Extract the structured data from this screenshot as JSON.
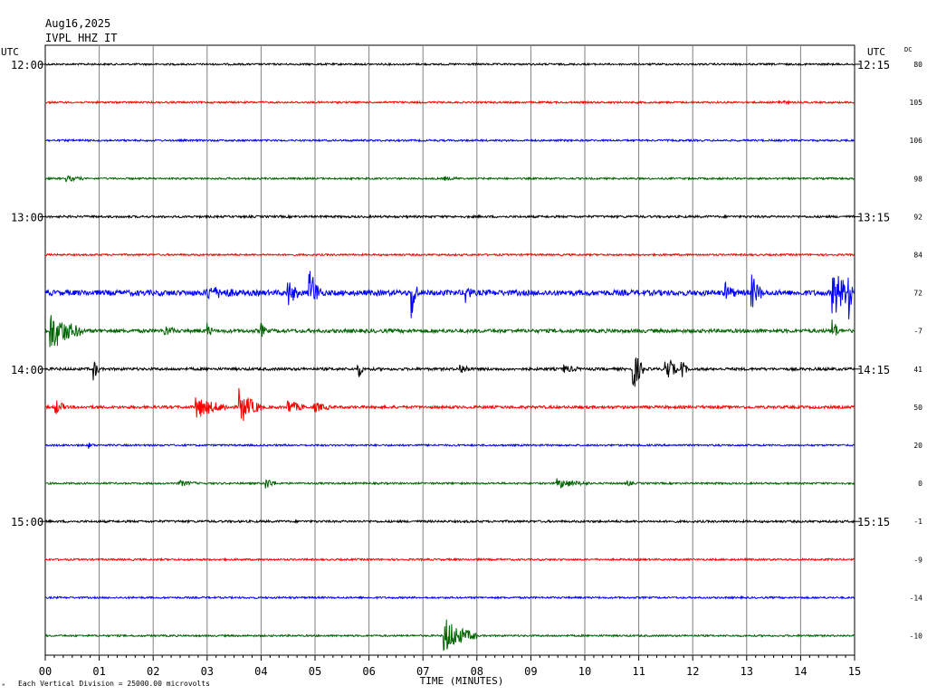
{
  "header": {
    "date": "Aug16,2025",
    "station": "IVPL HHZ IT",
    "utc_left": "UTC",
    "utc_right": "UTC",
    "dc_label": "DC"
  },
  "footer": {
    "xlabel": "TIME (MINUTES)",
    "scale_note": "Each Vertical Division = 25000.00 microvolts",
    "corner_mark": "ᴹ"
  },
  "colors": {
    "trace_cycle": [
      "#000000",
      "#ff0000",
      "#0000ff",
      "#006400"
    ],
    "grid": "#808080",
    "frame": "#000000"
  },
  "chart_data": {
    "type": "line",
    "title": "",
    "xlabel": "TIME (MINUTES)",
    "ylabel": "",
    "x_ticks": [
      "00",
      "01",
      "02",
      "03",
      "04",
      "05",
      "06",
      "07",
      "08",
      "09",
      "10",
      "11",
      "12",
      "13",
      "14",
      "15"
    ],
    "xlim": [
      0,
      15
    ],
    "grid": true,
    "left_hour_labels": [
      {
        "row": 0,
        "label": "12:00"
      },
      {
        "row": 4,
        "label": "13:00"
      },
      {
        "row": 8,
        "label": "14:00"
      },
      {
        "row": 12,
        "label": "15:00"
      }
    ],
    "right_hour_labels": [
      {
        "row": 0,
        "label": "12:15"
      },
      {
        "row": 4,
        "label": "13:15"
      },
      {
        "row": 8,
        "label": "14:15"
      },
      {
        "row": 12,
        "label": "15:15"
      }
    ],
    "dc_values": [
      "80",
      "105",
      "106",
      "98",
      "92",
      "84",
      "72",
      "-7",
      "41",
      "50",
      "20",
      "0",
      "-1",
      "-9",
      "-14",
      "-10"
    ],
    "traces": [
      {
        "row": 0,
        "color": "black",
        "noise": 1,
        "events": []
      },
      {
        "row": 1,
        "color": "red",
        "noise": 1,
        "events": [
          {
            "t": 13.6,
            "amp": 2,
            "dur": 0.2
          }
        ]
      },
      {
        "row": 2,
        "color": "blue",
        "noise": 1,
        "events": []
      },
      {
        "row": 3,
        "color": "green",
        "noise": 1,
        "events": [
          {
            "t": 0.4,
            "amp": 3,
            "dur": 0.3
          },
          {
            "t": 7.4,
            "amp": 1.5,
            "dur": 0.3
          }
        ]
      },
      {
        "row": 4,
        "color": "black",
        "noise": 1.2,
        "events": []
      },
      {
        "row": 5,
        "color": "red",
        "noise": 1,
        "events": []
      },
      {
        "row": 6,
        "color": "blue",
        "noise": 3,
        "events": [
          {
            "t": 3.0,
            "amp": 6,
            "dur": 0.6
          },
          {
            "t": 4.9,
            "amp": 28,
            "dur": 0.2
          },
          {
            "t": 4.5,
            "amp": 14,
            "dur": 0.2
          },
          {
            "t": 6.8,
            "amp": 30,
            "dur": 0.1
          },
          {
            "t": 7.8,
            "amp": 12,
            "dur": 0.1
          },
          {
            "t": 12.6,
            "amp": 10,
            "dur": 0.2
          },
          {
            "t": 13.1,
            "amp": 18,
            "dur": 0.2
          },
          {
            "t": 14.6,
            "amp": 28,
            "dur": 0.4
          },
          {
            "t": 14.9,
            "amp": 30,
            "dur": 0.1
          }
        ]
      },
      {
        "row": 7,
        "color": "green",
        "noise": 2,
        "events": [
          {
            "t": 0.1,
            "amp": 22,
            "dur": 0.6
          },
          {
            "t": 2.2,
            "amp": 6,
            "dur": 0.2
          },
          {
            "t": 3.0,
            "amp": 8,
            "dur": 0.1
          },
          {
            "t": 4.0,
            "amp": 8,
            "dur": 0.1
          },
          {
            "t": 14.6,
            "amp": 14,
            "dur": 0.1
          }
        ]
      },
      {
        "row": 8,
        "color": "black",
        "noise": 1.5,
        "events": [
          {
            "t": 0.9,
            "amp": 12,
            "dur": 0.1
          },
          {
            "t": 5.8,
            "amp": 10,
            "dur": 0.1
          },
          {
            "t": 7.7,
            "amp": 5,
            "dur": 0.2
          },
          {
            "t": 9.6,
            "amp": 4,
            "dur": 0.3
          },
          {
            "t": 10.9,
            "amp": 24,
            "dur": 0.2
          },
          {
            "t": 11.5,
            "amp": 18,
            "dur": 0.2
          },
          {
            "t": 11.8,
            "amp": 10,
            "dur": 0.1
          }
        ]
      },
      {
        "row": 9,
        "color": "red",
        "noise": 1.5,
        "events": [
          {
            "t": 0.2,
            "amp": 8,
            "dur": 0.2
          },
          {
            "t": 2.8,
            "amp": 12,
            "dur": 0.6
          },
          {
            "t": 3.6,
            "amp": 20,
            "dur": 0.4
          },
          {
            "t": 4.5,
            "amp": 8,
            "dur": 0.3
          },
          {
            "t": 5.0,
            "amp": 5,
            "dur": 0.3
          }
        ]
      },
      {
        "row": 10,
        "color": "blue",
        "noise": 1,
        "events": [
          {
            "t": 0.8,
            "amp": 3,
            "dur": 0.1
          }
        ]
      },
      {
        "row": 11,
        "color": "green",
        "noise": 1,
        "events": [
          {
            "t": 2.5,
            "amp": 3,
            "dur": 0.3
          },
          {
            "t": 4.1,
            "amp": 6,
            "dur": 0.2
          },
          {
            "t": 9.5,
            "amp": 5,
            "dur": 0.6
          },
          {
            "t": 10.8,
            "amp": 3,
            "dur": 0.1
          }
        ]
      },
      {
        "row": 12,
        "color": "black",
        "noise": 1.2,
        "events": []
      },
      {
        "row": 13,
        "color": "red",
        "noise": 1,
        "events": []
      },
      {
        "row": 14,
        "color": "blue",
        "noise": 1,
        "events": []
      },
      {
        "row": 15,
        "color": "green",
        "noise": 1,
        "events": [
          {
            "t": 7.4,
            "amp": 20,
            "dur": 0.6
          }
        ]
      }
    ]
  }
}
